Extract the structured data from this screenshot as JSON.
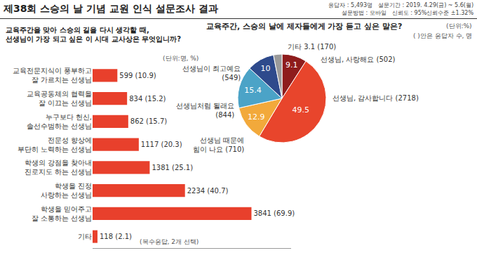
{
  "header": {
    "title": "제38회 스승의 날 기념 교원 인식 설문조사 결과",
    "info": [
      "응답자 : 5,493명",
      "설문기간 : 2019. 4.29(금) ~ 5.6(월)",
      "설문방법 : 모바일",
      "신뢰도 : 95%신뢰수준 ±1.32%"
    ]
  },
  "chart_data": [
    {
      "type": "bar",
      "title": "교육주간을 맞아 스승의 길을 다시 생각할 때,\n선생님이 가장 되고 싶은 이 시대 교사상은 무엇입니까?",
      "orientation": "horizontal",
      "categories": [
        "교육전문지식이 풍부하고\n잘 가르치는 선생님",
        "교육공동체의 협력을\n잘 이끄는 선생님",
        "누구보다 헌신,\n솔선수범하는 선생님",
        "전문성 향상에\n부단히 노력하는 선생님",
        "학생의 강점을 찾아내\n진로지도 하는 선생님",
        "학생을 진정\n사랑하는 선생님",
        "학생을 믿어주고\n잘 소통하는 선생님",
        "기타"
      ],
      "values": [
        599,
        834,
        862,
        1117,
        1381,
        2234,
        3841,
        118
      ],
      "value_labels": [
        "599 (10.9)",
        "834 (15.2)",
        "862 (15.7)",
        "1117 (20.3)",
        "1381 (25.1)",
        "2234 (40.7)",
        "3841 (69.9)",
        "118 (2.1)"
      ],
      "data_labels": true,
      "color": "#e8402c",
      "xlim": [
        0,
        4800
      ],
      "tick_labels": "y",
      "grid": false,
      "annotations": [
        "(단위:명, %)",
        "(복수응답, 2개 선택)"
      ]
    },
    {
      "type": "pie",
      "title": "교육주간, 스승의 날에 제자들에게 가장 듣고 싶은 말은?",
      "categories": [
        "선생님, 사랑해요 (502)",
        "선생님, 감사합니다 (2718)",
        "선생님 때문에\n힘이 나요 (710)",
        "선생님처럼 될래요\n(844)",
        "선생님이 최고예요\n(549)",
        "기타 3.1 (170)"
      ],
      "values": [
        9.1,
        49.5,
        12.9,
        15.4,
        10,
        3.1
      ],
      "value_labels": [
        "9.1",
        "49.5",
        "12.9",
        "15.4",
        "10",
        null
      ],
      "data_labels": true,
      "colors": [
        "#8e1c1c",
        "#e8452c",
        "#f2a93b",
        "#4ba3c7",
        "#2e4a8c",
        "#9a9a9a"
      ],
      "annotations": [
        "(단위:%)",
        "( )안은 응답자 수, 명"
      ]
    }
  ]
}
